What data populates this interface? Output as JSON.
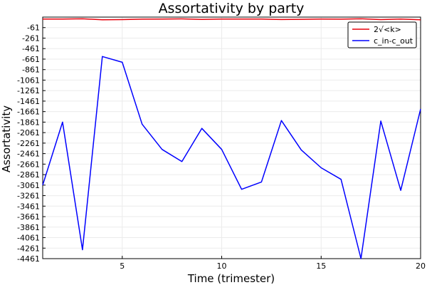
{
  "chart_data": {
    "type": "line",
    "title": "Assortativity by party",
    "xlabel": "Time (trimester)",
    "ylabel": "Assortativity",
    "xlim": [
      1,
      20
    ],
    "ylim": [
      -4461,
      139
    ],
    "x_ticks": [
      5,
      10,
      15,
      20
    ],
    "x_tick_labels": [
      "5",
      "10",
      "15",
      "20"
    ],
    "y_ticks": [
      -61,
      -261,
      -461,
      -661,
      -861,
      -1061,
      -1261,
      -1461,
      -1661,
      -1861,
      -2061,
      -2261,
      -2461,
      -2661,
      -2861,
      -3061,
      -3261,
      -3461,
      -3661,
      -3861,
      -4061,
      -4261,
      -4461
    ],
    "y_tick_labels": [
      "-61",
      "-261",
      "-461",
      "-661",
      "-861",
      "-1061",
      "-1261",
      "-1461",
      "-1661",
      "-1861",
      "-2061",
      "-2261",
      "-2461",
      "-2661",
      "-2861",
      "-3061",
      "-3261",
      "-3461",
      "-3661",
      "-3861",
      "-4061",
      "-4261",
      "-4461"
    ],
    "grid": true,
    "legend_position": "top-right",
    "x": [
      1,
      2,
      3,
      4,
      5,
      6,
      7,
      8,
      9,
      10,
      11,
      12,
      13,
      14,
      15,
      16,
      17,
      18,
      19,
      20
    ],
    "series": [
      {
        "name": "2√<k>",
        "color": "#e8000b",
        "values": [
          101,
          101,
          107,
          89,
          91,
          99,
          101,
          105,
          95,
          101,
          101,
          101,
          93,
          97,
          103,
          99,
          107,
          91,
          101,
          89
        ]
      },
      {
        "name": "c_in-c_out",
        "color": "#0000ff",
        "values": [
          -3061,
          -1861,
          -4291,
          -611,
          -721,
          -1901,
          -2381,
          -2611,
          -1981,
          -2381,
          -3141,
          -3001,
          -1831,
          -2391,
          -2731,
          -2951,
          -4461,
          -1841,
          -3161,
          -1611
        ]
      }
    ]
  }
}
